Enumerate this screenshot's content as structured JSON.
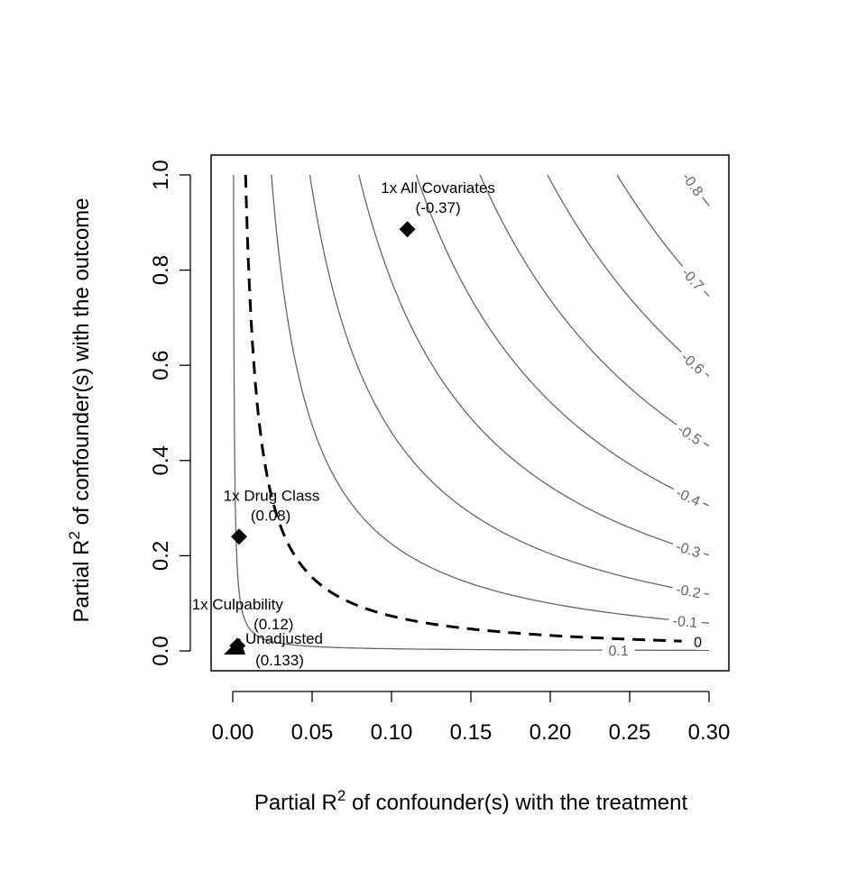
{
  "chart_data": {
    "type": "contour",
    "xlabel": "Partial R² of confounder(s) with the treatment",
    "ylabel": "Partial R² of confounder(s) with the outcome",
    "xlabel_main": "Partial R",
    "xlabel_sup": "2",
    "xlabel_rest": " of confounder(s) with the treatment",
    "ylabel_main": "Partial R",
    "ylabel_sup": "2",
    "ylabel_rest": " of confounder(s) with the outcome",
    "xlim": [
      0,
      0.3
    ],
    "ylim": [
      0,
      1.0
    ],
    "x_ticks": [
      "0.00",
      "0.05",
      "0.10",
      "0.15",
      "0.20",
      "0.25",
      "0.30"
    ],
    "y_ticks": [
      "0.0",
      "0.2",
      "0.4",
      "0.6",
      "0.8",
      "1.0"
    ],
    "unadjusted_estimate": 0.133,
    "contour_levels": [
      0.1,
      0,
      -0.1,
      -0.2,
      -0.3,
      -0.4,
      -0.5,
      -0.6,
      -0.7,
      -0.8
    ],
    "contour_labels": [
      "0.1",
      "0",
      "-0.1",
      "-0.2",
      "-0.3",
      "-0.4",
      "-0.5",
      "-0.6",
      "-0.7",
      "-0.8"
    ],
    "threshold_level": 0,
    "points": [
      {
        "name": "Unadjusted",
        "label": "Unadjusted",
        "value_label": "(0.133)",
        "x": 0.0,
        "y": 0.0,
        "marker": "triangle"
      },
      {
        "name": "1x Culpability",
        "label": "1x Culpability",
        "value_label": "(0.12)",
        "x": 0.003,
        "y": 0.011,
        "marker": "diamond"
      },
      {
        "name": "1x Drug Class",
        "label": "1x Drug Class",
        "value_label": "(0.08)",
        "x": 0.004,
        "y": 0.24,
        "marker": "diamond"
      },
      {
        "name": "1x All Covariates",
        "label": "1x All Covariates",
        "value_label": "(-0.37)",
        "x": 0.11,
        "y": 0.886,
        "marker": "diamond"
      }
    ],
    "colors": {
      "contour": "#666666",
      "threshold": "#000000",
      "points": "#000000"
    }
  }
}
